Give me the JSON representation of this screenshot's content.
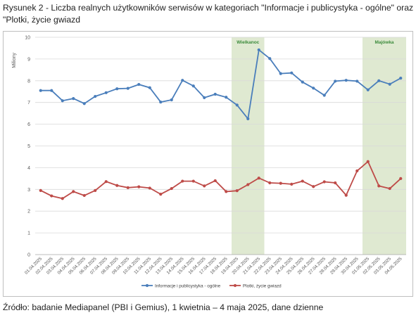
{
  "figure_title": "Rysunek 2 - Liczba realnych użytkowników serwisów w kategoriach \"Informacje i publicystyka - ogólne\" oraz \"Plotki, życie gwiazd",
  "source_note": "Źródło: badanie Mediapanel (PBI i Gemius), 1 kwietnia – 4 maja 2025, dane dzienne",
  "chart_data": {
    "type": "line",
    "ylabel": "Miliony",
    "ylim": [
      0,
      10
    ],
    "yticks": [
      "0",
      "1",
      "2",
      "3",
      "4",
      "5",
      "6",
      "7",
      "8",
      "9",
      "10"
    ],
    "grid": true,
    "legend_position": "bottom",
    "x": [
      "01.04.2025",
      "02.04.2025",
      "03.04.2025",
      "04.04.2025",
      "05.04.2025",
      "06.04.2025",
      "07.04.2025",
      "08.04.2025",
      "09.04.2025",
      "10.04.2025",
      "11.04.2025",
      "12.04.2025",
      "13.04.2025",
      "14.04.2025",
      "15.04.2025",
      "16.04.2025",
      "17.04.2025",
      "18.04.2025",
      "19.04.2025",
      "20.04.2025",
      "21.04.2025",
      "22.04.2025",
      "23.04.2025",
      "24.04.2025",
      "25.04.2025",
      "26.04.2025",
      "27.04.2025",
      "28.04.2025",
      "29.04.2025",
      "30.04.2025",
      "01.05.2025",
      "02.05.2025",
      "03.05.2025",
      "04.05.2025"
    ],
    "series": [
      {
        "name": "Informacje i publicystyka - ogólne",
        "color": "#4a7ebb",
        "values": [
          7.55,
          7.55,
          7.08,
          7.18,
          6.95,
          7.28,
          7.45,
          7.63,
          7.65,
          7.83,
          7.68,
          7.02,
          7.12,
          8.02,
          7.76,
          7.22,
          7.38,
          7.24,
          6.88,
          6.25,
          9.42,
          9.02,
          8.33,
          8.36,
          7.94,
          7.66,
          7.33,
          7.98,
          8.02,
          7.98,
          7.58,
          8.0,
          7.84,
          8.12
        ]
      },
      {
        "name": "Plotki, życie gwiazd",
        "color": "#be4b48",
        "values": [
          2.95,
          2.7,
          2.58,
          2.9,
          2.72,
          2.95,
          3.36,
          3.18,
          3.08,
          3.12,
          3.06,
          2.78,
          3.04,
          3.38,
          3.38,
          3.16,
          3.4,
          2.9,
          2.94,
          3.22,
          3.52,
          3.3,
          3.28,
          3.24,
          3.38,
          3.13,
          3.35,
          3.3,
          2.73,
          3.85,
          4.28,
          3.16,
          3.04,
          3.5
        ]
      }
    ],
    "annotations": [
      {
        "label": "Wielkanoc",
        "x_start": "19.04.2025",
        "x_end": "21.04.2025",
        "color": "#dfe9d1",
        "label_color": "#3a8a3a"
      },
      {
        "label": "Majówka",
        "x_start": "01.05.2025",
        "x_end": "04.05.2025",
        "color": "#dfe9d1",
        "label_color": "#3a8a3a"
      }
    ]
  }
}
